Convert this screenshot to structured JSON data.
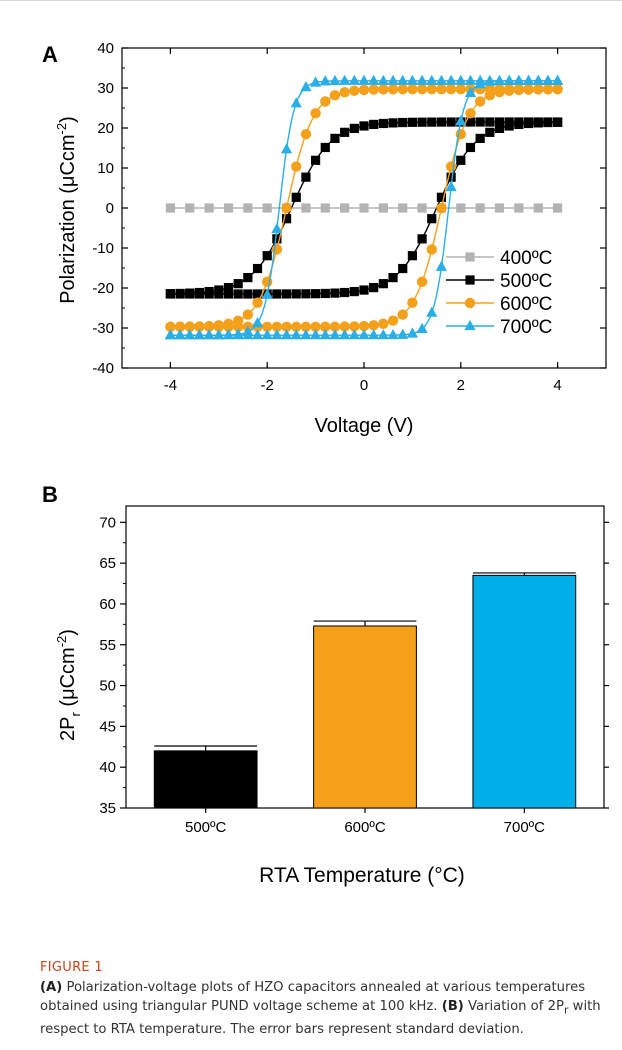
{
  "figure": {
    "label": "FIGURE 1",
    "caption_a_label": "(A)",
    "caption_a": " Polarization-voltage plots of HZO capacitors annealed at various temperatures obtained using triangular PUND voltage scheme at 100 kHz. ",
    "caption_b_label": "(B)",
    "caption_b_pre": " Variation of 2P",
    "caption_b_sub": "r",
    "caption_b_post": " with respect to RTA temperature. The error bars represent standard deviation."
  },
  "chart_data": [
    {
      "type": "line",
      "panel": "A",
      "xlabel": "Voltage (V)",
      "ylabel_main": "Polarization (μCcm",
      "ylabel_sup": "-2",
      "ylabel_close": ")",
      "xlim": [
        -5,
        5
      ],
      "ylim": [
        -40,
        40
      ],
      "xticks": [
        -4,
        -2,
        0,
        2,
        4
      ],
      "yticks": [
        -40,
        -30,
        -20,
        -10,
        0,
        10,
        20,
        30,
        40
      ],
      "grid": false,
      "legend_position": "right",
      "series": [
        {
          "name": "400ºC",
          "color": "#b3b3b3",
          "marker": "square",
          "x": [
            -4,
            4
          ],
          "y": [
            0,
            0
          ],
          "Ps": 0,
          "Vc": 0,
          "w": 0.3
        },
        {
          "name": "500ºC",
          "color": "#000000",
          "marker": "square",
          "Ps": 21.5,
          "Vc": 1.5,
          "w": 0.8
        },
        {
          "name": "600ºC",
          "color": "#f5a01a",
          "marker": "circle",
          "Ps": 29.7,
          "Vc": 1.6,
          "w": 0.55
        },
        {
          "name": "700ºC",
          "color": "#29aee8",
          "marker": "triangle",
          "Ps": 31.8,
          "Vc": 1.75,
          "w": 0.3
        }
      ]
    },
    {
      "type": "bar",
      "panel": "B",
      "categories": [
        "500ºC",
        "600ºC",
        "700ºC"
      ],
      "values": [
        42.0,
        57.3,
        63.5
      ],
      "errors": [
        0.6,
        0.6,
        0.3
      ],
      "colors": [
        "#000000",
        "#f5a01a",
        "#00afe8"
      ],
      "xlabel": "RTA Temperature (°C)",
      "ylabel_main": "2P",
      "ylabel_sub": "r",
      "ylabel_rest": " (μCcm",
      "ylabel_sup": "-2",
      "ylabel_close": ")",
      "ylim": [
        35,
        72
      ],
      "yticks": [
        35,
        40,
        45,
        50,
        55,
        60,
        65,
        70
      ]
    }
  ],
  "panel_labels": {
    "a": "A",
    "b": "B"
  }
}
